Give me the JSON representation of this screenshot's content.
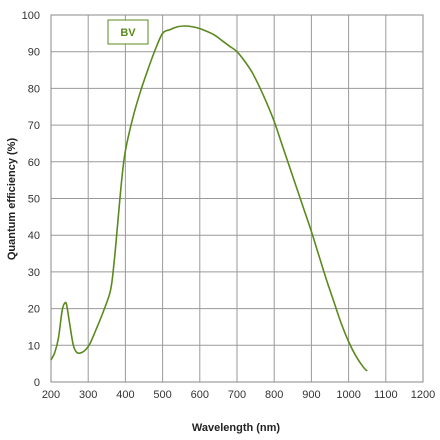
{
  "chart_data": {
    "type": "line",
    "xlabel": "Wavelength (nm)",
    "ylabel": "Quantum efficiency (%)",
    "xlim": [
      200,
      1200
    ],
    "ylim": [
      0,
      100
    ],
    "xticks": [
      200,
      300,
      400,
      500,
      600,
      700,
      800,
      900,
      1000,
      1100,
      1200
    ],
    "yticks": [
      0,
      10,
      20,
      30,
      40,
      50,
      60,
      70,
      80,
      90,
      100
    ],
    "grid": true,
    "legend_position": "top-left",
    "line_color": "#5a8a1e",
    "series": [
      {
        "name": "BV",
        "x": [
          200,
          210,
          220,
          230,
          237,
          242,
          250,
          260,
          270,
          282,
          295,
          305,
          320,
          340,
          360,
          370,
          380,
          390,
          400,
          420,
          440,
          460,
          480,
          500,
          520,
          540,
          560,
          580,
          600,
          620,
          640,
          660,
          680,
          700,
          720,
          740,
          760,
          780,
          800,
          820,
          840,
          860,
          880,
          900,
          920,
          940,
          960,
          980,
          1000,
          1020,
          1040,
          1050
        ],
        "y": [
          6,
          8,
          12,
          19.5,
          21.5,
          21,
          16,
          10,
          8,
          8,
          9,
          10.5,
          14,
          19,
          25,
          33,
          44,
          55,
          63,
          72,
          79,
          85,
          90.5,
          95,
          96,
          96.8,
          97,
          96.8,
          96.3,
          95.5,
          94.5,
          93,
          91.5,
          90,
          87.5,
          84.5,
          80.5,
          76,
          71,
          65,
          59,
          53,
          47,
          41,
          34.5,
          28,
          22,
          16,
          11,
          7,
          4,
          3
        ]
      }
    ]
  }
}
